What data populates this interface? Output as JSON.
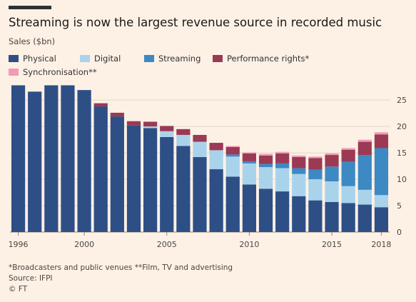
{
  "title": "Streaming is now the largest revenue source in recorded music",
  "subtitle": "Sales ($bn)",
  "footnote": "*Broadcasters and public venues **Film, TV and advertising",
  "source": "Source: IFPI",
  "credit": "© FT",
  "chart_data": {
    "type": "bar",
    "stacked": true,
    "x": [
      1996,
      1997,
      1998,
      1999,
      2000,
      2001,
      2002,
      2003,
      2004,
      2005,
      2006,
      2007,
      2008,
      2009,
      2010,
      2011,
      2012,
      2013,
      2014,
      2015,
      2016,
      2017,
      2018
    ],
    "x_tick_labels": [
      "1996",
      "2000",
      "2005",
      "2010",
      "2015",
      "2018"
    ],
    "y_ticks": [
      0,
      5,
      10,
      15,
      20,
      25
    ],
    "ylim": [
      0,
      28
    ],
    "grid": true,
    "legend_placement": "top",
    "series": [
      {
        "name": "Physical",
        "color": "#2e4f86",
        "values": [
          27.8,
          26.6,
          27.8,
          27.8,
          26.9,
          23.8,
          21.9,
          20.2,
          19.7,
          18.0,
          16.3,
          14.2,
          11.9,
          10.5,
          9.0,
          8.2,
          7.7,
          6.8,
          6.0,
          5.7,
          5.5,
          5.2,
          4.7
        ]
      },
      {
        "name": "Digital",
        "color": "#a9d3ea",
        "values": [
          0,
          0,
          0,
          0,
          0,
          0,
          0,
          0,
          0.3,
          1.1,
          2.1,
          2.9,
          3.6,
          3.8,
          4.0,
          4.1,
          4.4,
          4.2,
          4.0,
          3.9,
          3.2,
          2.8,
          2.3
        ]
      },
      {
        "name": "Streaming",
        "color": "#3c89c4",
        "values": [
          0,
          0,
          0,
          0,
          0,
          0,
          0,
          0,
          0,
          0,
          0,
          0,
          0,
          0.4,
          0.4,
          0.6,
          0.9,
          1.1,
          1.8,
          2.8,
          4.6,
          6.6,
          8.9
        ]
      },
      {
        "name": "Performance rights*",
        "color": "#9b3a55",
        "values": [
          0,
          0,
          0,
          0,
          0,
          0.6,
          0.7,
          0.8,
          0.9,
          1.0,
          1.1,
          1.3,
          1.4,
          1.4,
          1.5,
          1.6,
          1.9,
          2.1,
          2.2,
          2.2,
          2.3,
          2.5,
          2.6
        ]
      },
      {
        "name": "Synchronisation**",
        "color": "#f29bb5",
        "values": [
          0,
          0,
          0,
          0,
          0,
          0,
          0,
          0,
          0,
          0,
          0,
          0,
          0,
          0.2,
          0.2,
          0.3,
          0.3,
          0.3,
          0.3,
          0.3,
          0.3,
          0.4,
          0.4
        ]
      }
    ]
  }
}
